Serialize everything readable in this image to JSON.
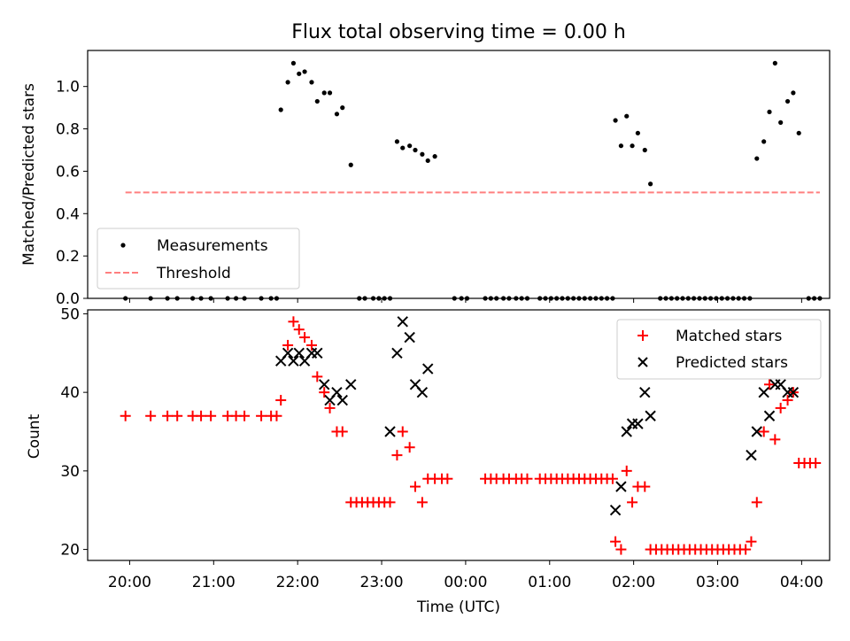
{
  "chart_data": [
    {
      "type": "scatter",
      "title": "Flux total observing time = 0.00 h",
      "xlabel": "",
      "ylabel": "Matched/Predicted stars",
      "ylim": [
        0,
        1.17
      ],
      "yticks": [
        "0.0",
        "0.2",
        "0.4",
        "0.6",
        "0.8",
        "1.0"
      ],
      "ytick_values": [
        0,
        0.2,
        0.4,
        0.6,
        0.8,
        1.0
      ],
      "legend_position": "lower-left",
      "series": [
        {
          "name": "Measurements",
          "color": "#000000",
          "marker": "dot",
          "points": [
            [
              "19:57",
              0
            ],
            [
              "20:15",
              0
            ],
            [
              "20:27",
              0
            ],
            [
              "20:34",
              0
            ],
            [
              "20:45",
              0
            ],
            [
              "20:51",
              0
            ],
            [
              "20:58",
              0
            ],
            [
              "21:10",
              0
            ],
            [
              "21:16",
              0
            ],
            [
              "21:22",
              0
            ],
            [
              "21:34",
              0
            ],
            [
              "21:41",
              0
            ],
            [
              "21:45",
              0
            ],
            [
              "21:48",
              0.89
            ],
            [
              "21:53",
              1.02
            ],
            [
              "21:57",
              1.11
            ],
            [
              "22:01",
              1.06
            ],
            [
              "22:05",
              1.07
            ],
            [
              "22:10",
              1.02
            ],
            [
              "22:14",
              0.93
            ],
            [
              "22:19",
              0.97
            ],
            [
              "22:23",
              0.97
            ],
            [
              "22:28",
              0.87
            ],
            [
              "22:32",
              0.9
            ],
            [
              "22:38",
              0.63
            ],
            [
              "22:44",
              0
            ],
            [
              "22:48",
              0
            ],
            [
              "22:54",
              0
            ],
            [
              "22:58",
              0
            ],
            [
              "23:02",
              0
            ],
            [
              "23:06",
              0
            ],
            [
              "23:11",
              0.74
            ],
            [
              "23:15",
              0.71
            ],
            [
              "23:20",
              0.72
            ],
            [
              "23:24",
              0.7
            ],
            [
              "23:29",
              0.68
            ],
            [
              "23:33",
              0.65
            ],
            [
              "23:38",
              0.67
            ],
            [
              "23:52",
              0
            ],
            [
              "23:57",
              0
            ],
            [
              "00:01",
              0
            ],
            [
              "00:14",
              0
            ],
            [
              "00:18",
              0
            ],
            [
              "00:22",
              0
            ],
            [
              "00:27",
              0
            ],
            [
              "00:31",
              0
            ],
            [
              "00:36",
              0
            ],
            [
              "00:40",
              0
            ],
            [
              "00:44",
              0
            ],
            [
              "00:53",
              0
            ],
            [
              "00:57",
              0
            ],
            [
              "01:01",
              0
            ],
            [
              "01:05",
              0
            ],
            [
              "01:09",
              0
            ],
            [
              "01:13",
              0
            ],
            [
              "01:17",
              0
            ],
            [
              "01:21",
              0
            ],
            [
              "01:25",
              0
            ],
            [
              "01:29",
              0
            ],
            [
              "01:33",
              0
            ],
            [
              "01:37",
              0
            ],
            [
              "01:41",
              0
            ],
            [
              "01:45",
              0
            ],
            [
              "01:47",
              0.84
            ],
            [
              "01:51",
              0.72
            ],
            [
              "01:55",
              0.86
            ],
            [
              "01:59",
              0.72
            ],
            [
              "02:03",
              0.78
            ],
            [
              "02:08",
              0.7
            ],
            [
              "02:12",
              0.54
            ],
            [
              "02:19",
              0
            ],
            [
              "02:23",
              0
            ],
            [
              "02:27",
              0
            ],
            [
              "02:31",
              0
            ],
            [
              "02:35",
              0
            ],
            [
              "02:39",
              0
            ],
            [
              "02:43",
              0
            ],
            [
              "02:47",
              0
            ],
            [
              "02:51",
              0
            ],
            [
              "02:55",
              0
            ],
            [
              "02:59",
              0
            ],
            [
              "03:03",
              0
            ],
            [
              "03:07",
              0
            ],
            [
              "03:11",
              0
            ],
            [
              "03:15",
              0
            ],
            [
              "03:19",
              0
            ],
            [
              "03:23",
              0
            ],
            [
              "03:28",
              0.66
            ],
            [
              "03:33",
              0.74
            ],
            [
              "03:37",
              0.88
            ],
            [
              "03:41",
              1.11
            ],
            [
              "03:45",
              0.83
            ],
            [
              "03:50",
              0.93
            ],
            [
              "03:54",
              0.97
            ],
            [
              "03:58",
              0.78
            ],
            [
              "04:05",
              0
            ],
            [
              "04:09",
              0
            ],
            [
              "04:13",
              0
            ]
          ]
        },
        {
          "name": "Threshold",
          "color": "#ff7f7f",
          "style": "dashed",
          "points": [
            [
              "19:57",
              0.5
            ],
            [
              "04:13",
              0.5
            ]
          ]
        }
      ]
    },
    {
      "type": "scatter",
      "title": "",
      "xlabel": "Time (UTC)",
      "ylabel": "Count",
      "ylim": [
        18.6,
        50.5
      ],
      "yticks": [
        "20",
        "30",
        "40",
        "50"
      ],
      "ytick_values": [
        20,
        30,
        40,
        50
      ],
      "xticks": [
        "20:00",
        "21:00",
        "22:00",
        "23:00",
        "00:00",
        "01:00",
        "02:00",
        "03:00",
        "04:00"
      ],
      "legend_position": "upper-right",
      "series": [
        {
          "name": "Matched stars",
          "color": "#ff0000",
          "marker": "plus",
          "points": [
            [
              "19:57",
              37
            ],
            [
              "20:15",
              37
            ],
            [
              "20:27",
              37
            ],
            [
              "20:34",
              37
            ],
            [
              "20:45",
              37
            ],
            [
              "20:51",
              37
            ],
            [
              "20:58",
              37
            ],
            [
              "21:10",
              37
            ],
            [
              "21:16",
              37
            ],
            [
              "21:22",
              37
            ],
            [
              "21:34",
              37
            ],
            [
              "21:41",
              37
            ],
            [
              "21:45",
              37
            ],
            [
              "21:48",
              39
            ],
            [
              "21:53",
              46
            ],
            [
              "21:57",
              49
            ],
            [
              "22:01",
              48
            ],
            [
              "22:05",
              47
            ],
            [
              "22:10",
              46
            ],
            [
              "22:14",
              42
            ],
            [
              "22:19",
              40
            ],
            [
              "22:23",
              38
            ],
            [
              "22:28",
              35
            ],
            [
              "22:32",
              35
            ],
            [
              "22:38",
              26
            ],
            [
              "22:42",
              26
            ],
            [
              "22:46",
              26
            ],
            [
              "22:50",
              26
            ],
            [
              "22:54",
              26
            ],
            [
              "22:58",
              26
            ],
            [
              "23:02",
              26
            ],
            [
              "23:06",
              26
            ],
            [
              "23:11",
              32
            ],
            [
              "23:15",
              35
            ],
            [
              "23:20",
              33
            ],
            [
              "23:24",
              28
            ],
            [
              "23:29",
              26
            ],
            [
              "23:33",
              29
            ],
            [
              "23:38",
              29
            ],
            [
              "23:43",
              29
            ],
            [
              "23:47",
              29
            ],
            [
              "00:14",
              29
            ],
            [
              "00:18",
              29
            ],
            [
              "00:22",
              29
            ],
            [
              "00:27",
              29
            ],
            [
              "00:31",
              29
            ],
            [
              "00:36",
              29
            ],
            [
              "00:40",
              29
            ],
            [
              "00:44",
              29
            ],
            [
              "00:53",
              29
            ],
            [
              "00:57",
              29
            ],
            [
              "01:01",
              29
            ],
            [
              "01:05",
              29
            ],
            [
              "01:09",
              29
            ],
            [
              "01:13",
              29
            ],
            [
              "01:17",
              29
            ],
            [
              "01:21",
              29
            ],
            [
              "01:25",
              29
            ],
            [
              "01:29",
              29
            ],
            [
              "01:33",
              29
            ],
            [
              "01:37",
              29
            ],
            [
              "01:41",
              29
            ],
            [
              "01:45",
              29
            ],
            [
              "01:47",
              21
            ],
            [
              "01:51",
              20
            ],
            [
              "01:55",
              30
            ],
            [
              "01:59",
              26
            ],
            [
              "02:03",
              28
            ],
            [
              "02:08",
              28
            ],
            [
              "02:12",
              20
            ],
            [
              "02:16",
              20
            ],
            [
              "02:20",
              20
            ],
            [
              "02:24",
              20
            ],
            [
              "02:28",
              20
            ],
            [
              "02:32",
              20
            ],
            [
              "02:36",
              20
            ],
            [
              "02:40",
              20
            ],
            [
              "02:44",
              20
            ],
            [
              "02:48",
              20
            ],
            [
              "02:52",
              20
            ],
            [
              "02:56",
              20
            ],
            [
              "03:00",
              20
            ],
            [
              "03:04",
              20
            ],
            [
              "03:08",
              20
            ],
            [
              "03:12",
              20
            ],
            [
              "03:16",
              20
            ],
            [
              "03:20",
              20
            ],
            [
              "03:24",
              21
            ],
            [
              "03:28",
              26
            ],
            [
              "03:33",
              35
            ],
            [
              "03:37",
              41
            ],
            [
              "03:41",
              34
            ],
            [
              "03:45",
              38
            ],
            [
              "03:50",
              39
            ],
            [
              "03:54",
              40
            ],
            [
              "03:58",
              31
            ],
            [
              "04:02",
              31
            ],
            [
              "04:06",
              31
            ],
            [
              "04:10",
              31
            ]
          ]
        },
        {
          "name": "Predicted stars",
          "color": "#000000",
          "marker": "x",
          "points": [
            [
              "21:48",
              44
            ],
            [
              "21:53",
              45
            ],
            [
              "21:57",
              44
            ],
            [
              "22:01",
              45
            ],
            [
              "22:05",
              44
            ],
            [
              "22:10",
              45
            ],
            [
              "22:14",
              45
            ],
            [
              "22:19",
              41
            ],
            [
              "22:23",
              39
            ],
            [
              "22:28",
              40
            ],
            [
              "22:32",
              39
            ],
            [
              "22:38",
              41
            ],
            [
              "23:06",
              35
            ],
            [
              "23:11",
              45
            ],
            [
              "23:15",
              49
            ],
            [
              "23:20",
              47
            ],
            [
              "23:24",
              41
            ],
            [
              "23:29",
              40
            ],
            [
              "23:33",
              43
            ],
            [
              "01:47",
              25
            ],
            [
              "01:51",
              28
            ],
            [
              "01:55",
              35
            ],
            [
              "01:59",
              36
            ],
            [
              "02:03",
              36
            ],
            [
              "02:08",
              40
            ],
            [
              "02:12",
              37
            ],
            [
              "03:24",
              32
            ],
            [
              "03:28",
              35
            ],
            [
              "03:33",
              40
            ],
            [
              "03:37",
              37
            ],
            [
              "03:41",
              41
            ],
            [
              "03:45",
              41
            ],
            [
              "03:50",
              40
            ],
            [
              "03:54",
              40
            ]
          ]
        }
      ]
    }
  ]
}
